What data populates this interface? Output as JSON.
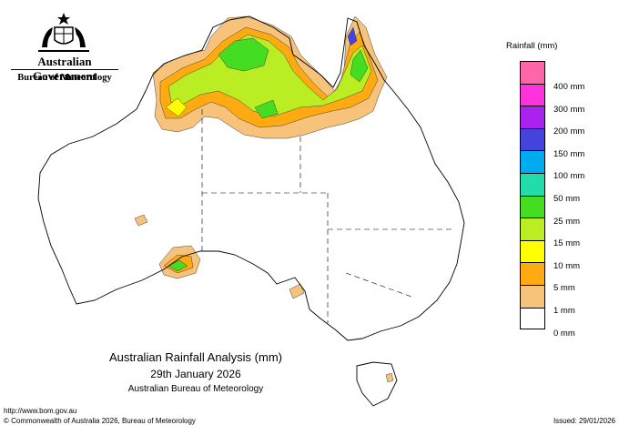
{
  "header": {
    "government": "Australian Government",
    "agency": "Bureau of Meteorology"
  },
  "icons": {
    "crest": "commonwealth-coat-of-arms"
  },
  "map": {
    "titles": [
      "Australian Rainfall Analysis (mm)",
      "29th January 2026",
      "Australian Bureau of Meteorology"
    ],
    "region": "Australia"
  },
  "legend": {
    "title": "Rainfall (mm)",
    "bins": [
      {
        "label": "400 mm",
        "color": "#ff66aa"
      },
      {
        "label": "300 mm",
        "color": "#ff33dd"
      },
      {
        "label": "200 mm",
        "color": "#aa22ee"
      },
      {
        "label": "150 mm",
        "color": "#4444dd"
      },
      {
        "label": "100 mm",
        "color": "#00aaee"
      },
      {
        "label": "50 mm",
        "color": "#22ddaa"
      },
      {
        "label": "25 mm",
        "color": "#44dd22"
      },
      {
        "label": "15 mm",
        "color": "#bbee22"
      },
      {
        "label": "10 mm",
        "color": "#ffff00"
      },
      {
        "label": "5 mm",
        "color": "#ffaa11"
      },
      {
        "label": "1 mm",
        "color": "#f7c27a"
      },
      {
        "label": "0 mm",
        "color": "#ffffff"
      }
    ]
  },
  "footer": {
    "url": "http://www.bom.gov.au",
    "copyright": "© Commonwealth of Australia 2026, Bureau of Meteorology",
    "issued": "Issued: 29/01/2026"
  }
}
